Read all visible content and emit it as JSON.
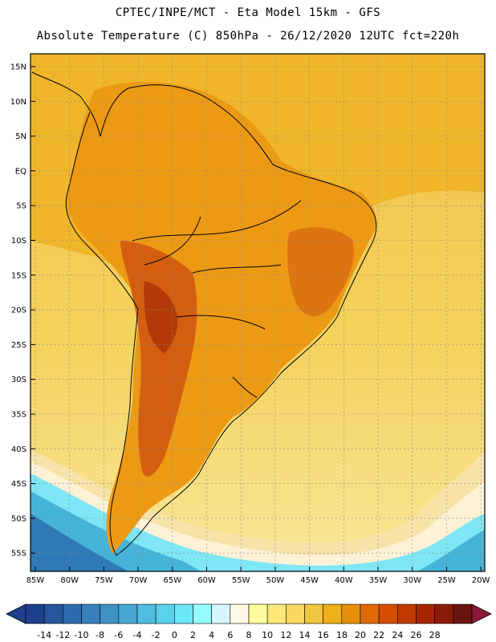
{
  "header": {
    "line1": "CPTEC/INPE/MCT -  Eta Model 15km - GFS",
    "line2": "Absolute Temperature (C) 850hPa - 26/12/2020 12UTC fct=220h"
  },
  "map": {
    "lat_labels": [
      "15N",
      "10N",
      "5N",
      "EQ",
      "5S",
      "10S",
      "15S",
      "20S",
      "25S",
      "30S",
      "35S",
      "40S",
      "45S",
      "50S",
      "55S"
    ],
    "lon_labels": [
      "85W",
      "80W",
      "75W",
      "70W",
      "65W",
      "60W",
      "55W",
      "50W",
      "45W",
      "40W",
      "35W",
      "30W",
      "25W",
      "20W"
    ]
  },
  "colorbar": {
    "labels": [
      "-14",
      "-12",
      "-10",
      "-8",
      "-6",
      "-4",
      "-2",
      "0",
      "2",
      "4",
      "6",
      "8",
      "10",
      "12",
      "14",
      "16",
      "18",
      "20",
      "22",
      "24",
      "26",
      "28"
    ],
    "colors": [
      "#1d3f8c",
      "#27559e",
      "#2e6aae",
      "#3a7fbd",
      "#3f92c6",
      "#45a6d2",
      "#4fbde0",
      "#5ad2ec",
      "#6ee8f7",
      "#94fcff",
      "#d4f6fc",
      "#fff8e6",
      "#fffb9e",
      "#fde878",
      "#f8d860",
      "#f0c540",
      "#eeb018",
      "#e88f0c",
      "#e06a06",
      "#d54e00",
      "#c23a00",
      "#a92500",
      "#8a1a08",
      "#6a1410"
    ],
    "color_low": "#1d3f8c",
    "color_high": "#8a1a38"
  }
}
